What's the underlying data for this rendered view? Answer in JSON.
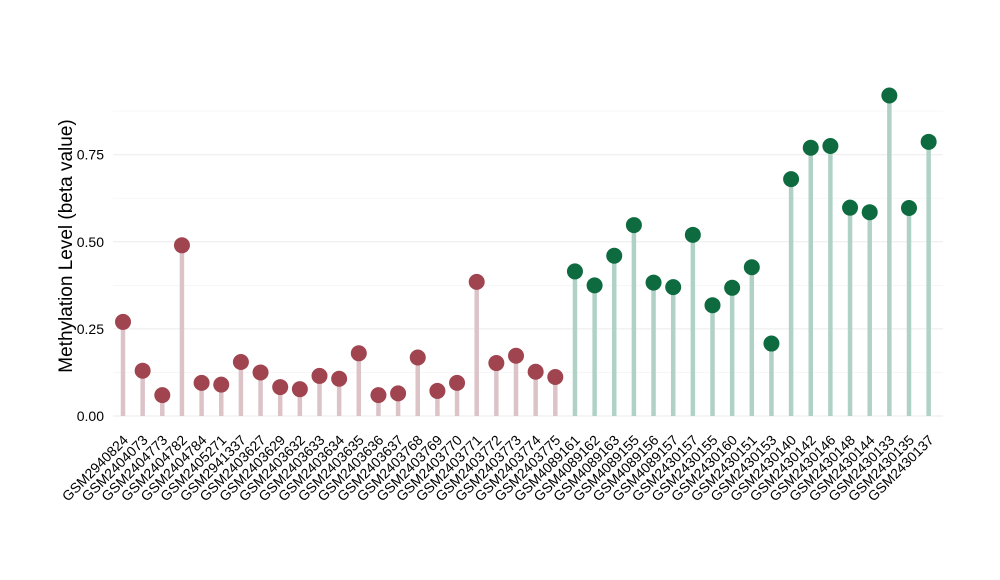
{
  "chart_data": {
    "type": "lollipop",
    "title": "",
    "xlabel": "",
    "ylabel": "Methylation Level (beta value)",
    "ylim": [
      0,
      0.93
    ],
    "yticks": [
      0.0,
      0.25,
      0.5,
      0.75
    ],
    "ytick_labels": [
      "0.00",
      "0.25",
      "0.50",
      "0.75"
    ],
    "grid": true,
    "legend": "none",
    "group_colors": {
      "group1": {
        "stem": "#dcc3c8",
        "dot": "#a04450"
      },
      "group2": {
        "stem": "#b0d2c6",
        "dot": "#0d6b3f"
      }
    },
    "points": [
      {
        "sample": "GSM2940824",
        "value": 0.27,
        "group": "group1"
      },
      {
        "sample": "GSM2404073",
        "value": 0.13,
        "group": "group1"
      },
      {
        "sample": "GSM2404773",
        "value": 0.06,
        "group": "group1"
      },
      {
        "sample": "GSM2404782",
        "value": 0.49,
        "group": "group1"
      },
      {
        "sample": "GSM2404784",
        "value": 0.095,
        "group": "group1"
      },
      {
        "sample": "GSM2405271",
        "value": 0.09,
        "group": "group1"
      },
      {
        "sample": "GSM2941337",
        "value": 0.155,
        "group": "group1"
      },
      {
        "sample": "GSM2403627",
        "value": 0.125,
        "group": "group1"
      },
      {
        "sample": "GSM2403629",
        "value": 0.083,
        "group": "group1"
      },
      {
        "sample": "GSM2403632",
        "value": 0.077,
        "group": "group1"
      },
      {
        "sample": "GSM2403633",
        "value": 0.115,
        "group": "group1"
      },
      {
        "sample": "GSM2403634",
        "value": 0.107,
        "group": "group1"
      },
      {
        "sample": "GSM2403635",
        "value": 0.18,
        "group": "group1"
      },
      {
        "sample": "GSM2403636",
        "value": 0.06,
        "group": "group1"
      },
      {
        "sample": "GSM2403637",
        "value": 0.065,
        "group": "group1"
      },
      {
        "sample": "GSM2403768",
        "value": 0.168,
        "group": "group1"
      },
      {
        "sample": "GSM2403769",
        "value": 0.072,
        "group": "group1"
      },
      {
        "sample": "GSM2403770",
        "value": 0.095,
        "group": "group1"
      },
      {
        "sample": "GSM2403771",
        "value": 0.385,
        "group": "group1"
      },
      {
        "sample": "GSM2403772",
        "value": 0.152,
        "group": "group1"
      },
      {
        "sample": "GSM2403773",
        "value": 0.173,
        "group": "group1"
      },
      {
        "sample": "GSM2403774",
        "value": 0.127,
        "group": "group1"
      },
      {
        "sample": "GSM2403775",
        "value": 0.112,
        "group": "group1"
      },
      {
        "sample": "GSM4089161",
        "value": 0.415,
        "group": "group2"
      },
      {
        "sample": "GSM4089162",
        "value": 0.375,
        "group": "group2"
      },
      {
        "sample": "GSM4089163",
        "value": 0.46,
        "group": "group2"
      },
      {
        "sample": "GSM4089155",
        "value": 0.548,
        "group": "group2"
      },
      {
        "sample": "GSM4089156",
        "value": 0.383,
        "group": "group2"
      },
      {
        "sample": "GSM4089157",
        "value": 0.37,
        "group": "group2"
      },
      {
        "sample": "GSM2430157",
        "value": 0.52,
        "group": "group2"
      },
      {
        "sample": "GSM2430155",
        "value": 0.318,
        "group": "group2"
      },
      {
        "sample": "GSM2430160",
        "value": 0.368,
        "group": "group2"
      },
      {
        "sample": "GSM2430151",
        "value": 0.427,
        "group": "group2"
      },
      {
        "sample": "GSM2430153",
        "value": 0.208,
        "group": "group2"
      },
      {
        "sample": "GSM2430140",
        "value": 0.68,
        "group": "group2"
      },
      {
        "sample": "GSM2430142",
        "value": 0.77,
        "group": "group2"
      },
      {
        "sample": "GSM2430146",
        "value": 0.775,
        "group": "group2"
      },
      {
        "sample": "GSM2430148",
        "value": 0.598,
        "group": "group2"
      },
      {
        "sample": "GSM2430144",
        "value": 0.585,
        "group": "group2"
      },
      {
        "sample": "GSM2430133",
        "value": 0.92,
        "group": "group2"
      },
      {
        "sample": "GSM2430135",
        "value": 0.597,
        "group": "group2"
      },
      {
        "sample": "GSM2430137",
        "value": 0.787,
        "group": "group2"
      }
    ]
  }
}
